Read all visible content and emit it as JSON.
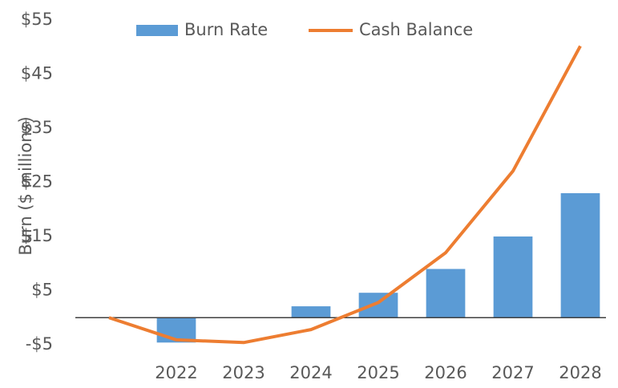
{
  "chart_data": {
    "type": "bar",
    "y_label": "Burn ($ millions)",
    "categories": [
      null,
      "2022",
      "2023",
      "2024",
      "2025",
      "2026",
      "2027",
      "2028"
    ],
    "series": [
      {
        "name": "Burn Rate",
        "type": "bar",
        "color": "#5b9bd5",
        "values": [
          null,
          -4.6,
          0,
          2.1,
          4.6,
          9.0,
          15.0,
          23.0
        ]
      },
      {
        "name": "Cash Balance",
        "type": "line",
        "color": "#ed7d31",
        "values": [
          0,
          -4.1,
          -4.6,
          -2.2,
          2.8,
          12.0,
          27.1,
          50.2
        ]
      }
    ],
    "ylim": [
      -5,
      55
    ],
    "yticks": [
      {
        "value": -5,
        "label": "-$5"
      },
      {
        "value": 5,
        "label": "$5"
      },
      {
        "value": 15,
        "label": "$15"
      },
      {
        "value": 25,
        "label": "$25"
      },
      {
        "value": 35,
        "label": "$35"
      },
      {
        "value": 45,
        "label": "$45"
      },
      {
        "value": 55,
        "label": "$55"
      }
    ],
    "grid": false
  }
}
